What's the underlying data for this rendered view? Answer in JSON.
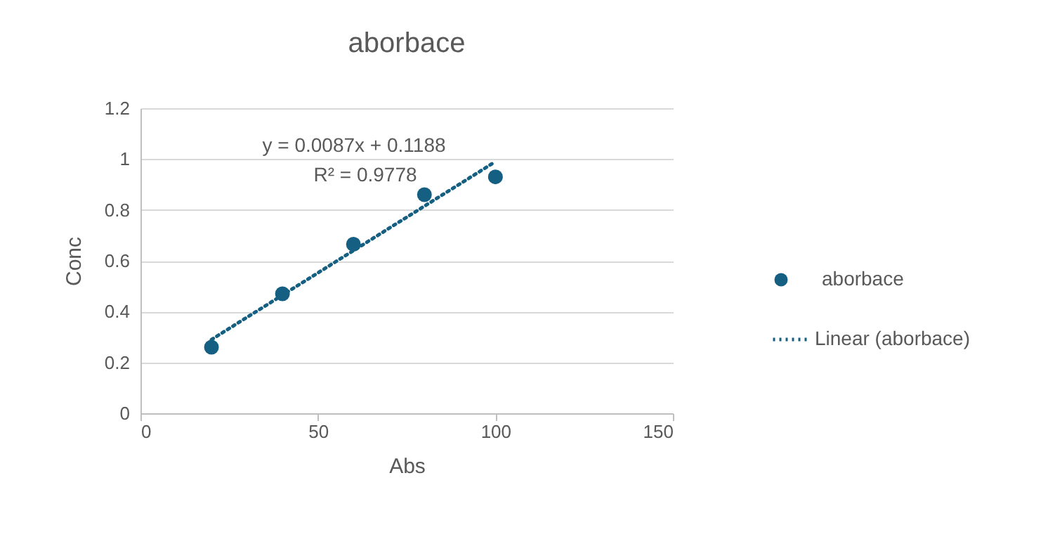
{
  "chart_data": {
    "type": "scatter",
    "title": "aborbace",
    "xlabel": "Abs",
    "ylabel": "Conc",
    "xlim": [
      0,
      150
    ],
    "xticks": [
      0,
      50,
      100,
      150
    ],
    "ylim": [
      0,
      1.2
    ],
    "yticks": [
      0,
      0.2,
      0.4,
      0.6,
      0.8,
      1,
      1.2
    ],
    "grid": "y",
    "legend": "right",
    "annotations": [
      "y = 0.0087x + 0.1188",
      "R² = 0.9778"
    ],
    "series": [
      {
        "name": "aborbace",
        "marker": "circle",
        "color": "#156082",
        "x": [
          20,
          40,
          60,
          80,
          100
        ],
        "values": [
          0.26,
          0.47,
          0.665,
          0.86,
          0.93
        ]
      },
      {
        "name": "Linear (aborbace)",
        "type": "line",
        "line_style": "dotted",
        "marker": "none",
        "color": "#156082",
        "x": [
          20,
          100
        ],
        "values": [
          0.29,
          0.99
        ]
      }
    ]
  }
}
